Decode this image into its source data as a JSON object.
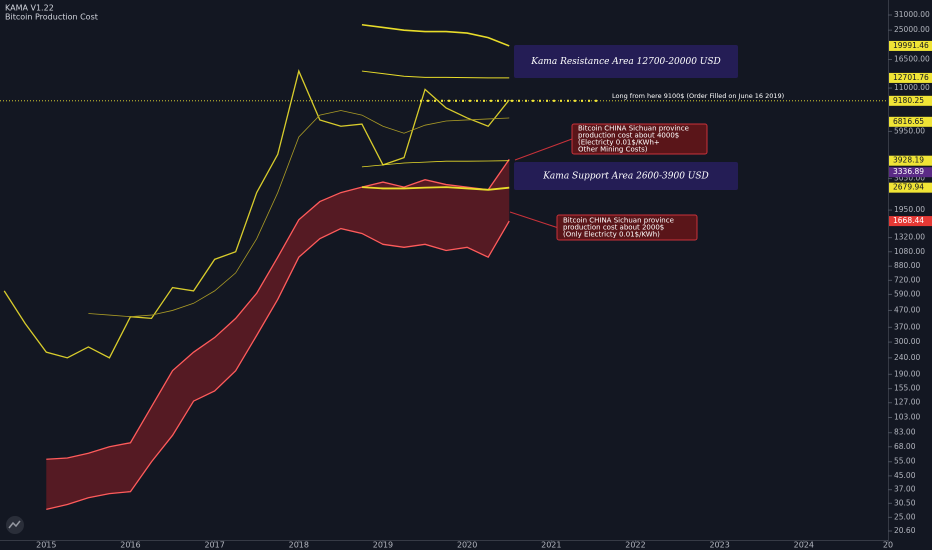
{
  "header": {
    "indicator": "KAMA V1.22",
    "subtitle": "Bitcoin Production Cost"
  },
  "chart_data": {
    "type": "line",
    "log_scale": true,
    "x": [
      2014.5,
      2014.75,
      2015,
      2015.25,
      2015.5,
      2015.75,
      2016,
      2016.25,
      2016.5,
      2016.75,
      2017,
      2017.25,
      2017.5,
      2017.75,
      2018,
      2018.25,
      2018.5,
      2018.75,
      2019,
      2019.25,
      2019.5,
      2019.75,
      2020,
      2020.25,
      2020.5
    ],
    "series": [
      {
        "color": "#d8cc2c",
        "values": [
          620,
          390,
          260,
          240,
          280,
          240,
          430,
          420,
          650,
          620,
          970,
          1080,
          2500,
          4300,
          14000,
          7000,
          6400,
          6600,
          3700,
          4100,
          10800,
          8300,
          7200,
          6400,
          9300
        ]
      },
      {
        "color": "#ff5b5b",
        "values": [
          null,
          null,
          57,
          58,
          62,
          68,
          72,
          120,
          200,
          260,
          320,
          420,
          600,
          1000,
          1700,
          2200,
          2500,
          2700,
          2900,
          2700,
          3000,
          2800,
          2700,
          2600,
          4000
        ]
      },
      {
        "color": "#ff5b5b",
        "values": [
          null,
          null,
          28,
          30,
          33,
          35,
          36,
          55,
          80,
          130,
          150,
          200,
          330,
          550,
          1000,
          1300,
          1500,
          1400,
          1200,
          1150,
          1200,
          1100,
          1150,
          1000,
          1668.44
        ]
      },
      {
        "color": "#a99a26",
        "values": [
          null,
          null,
          null,
          null,
          450,
          440,
          430,
          440,
          470,
          520,
          620,
          800,
          1300,
          2500,
          5500,
          7500,
          8000,
          7500,
          6400,
          5800,
          6500,
          6900,
          7000,
          7100,
          7200
        ]
      },
      {
        "color": "#e8dc2a",
        "values": [
          null,
          null,
          null,
          null,
          null,
          null,
          null,
          null,
          null,
          null,
          null,
          null,
          null,
          null,
          null,
          null,
          null,
          27000,
          26000,
          25000,
          24500,
          24500,
          24000,
          22500,
          19991.46
        ]
      },
      {
        "color": "#e8dc2a",
        "values": [
          null,
          null,
          null,
          null,
          null,
          null,
          null,
          null,
          null,
          null,
          null,
          null,
          null,
          null,
          null,
          null,
          null,
          14000,
          13500,
          13000,
          12800,
          12800,
          12750,
          12720,
          12701.76
        ]
      },
      {
        "color": "#e8dc2a",
        "values": [
          null,
          null,
          null,
          null,
          null,
          null,
          null,
          null,
          null,
          null,
          null,
          null,
          null,
          null,
          null,
          null,
          null,
          3600,
          3700,
          3800,
          3850,
          3900,
          3900,
          3910,
          3928.19
        ]
      },
      {
        "color": "#e8dc2a",
        "values": [
          null,
          null,
          null,
          null,
          null,
          null,
          null,
          null,
          null,
          null,
          null,
          null,
          null,
          null,
          null,
          null,
          null,
          2700,
          2650,
          2650,
          2680,
          2700,
          2650,
          2600,
          2679.94
        ]
      }
    ],
    "fill_between": [
      1,
      2
    ],
    "fill_color": "rgba(130,28,36,0.6)",
    "xlim": [
      2014.45,
      2025
    ],
    "xticks": [
      2015,
      2016,
      2017,
      2018,
      2019,
      2020,
      2021,
      2022,
      2023,
      2024,
      {
        "value": 2025,
        "label": "20"
      }
    ],
    "ylim": [
      20.6,
      31000
    ],
    "yticks": [
      {
        "value": 31000,
        "label": "31000.00"
      },
      {
        "value": 25000,
        "label": "25000.00"
      },
      {
        "value": 16500,
        "label": "16500.00"
      },
      {
        "value": 11000,
        "label": "11000.00"
      },
      {
        "value": 5950,
        "label": "5950.00"
      },
      {
        "value": 3050,
        "label": "3050.00"
      },
      {
        "value": 1950,
        "label": "1950.00"
      },
      {
        "value": 1320,
        "label": "1320.00"
      },
      {
        "value": 1080,
        "label": "1080.00"
      },
      {
        "value": 880,
        "label": "880.00"
      },
      {
        "value": 720,
        "label": "720.00"
      },
      {
        "value": 590,
        "label": "590.00"
      },
      {
        "value": 470,
        "label": "470.00"
      },
      {
        "value": 370,
        "label": "370.00"
      },
      {
        "value": 300,
        "label": "300.00"
      },
      {
        "value": 240,
        "label": "240.00"
      },
      {
        "value": 190,
        "label": "190.00"
      },
      {
        "value": 155,
        "label": "155.00"
      },
      {
        "value": 127,
        "label": "127.00"
      },
      {
        "value": 103,
        "label": "103.00"
      },
      {
        "value": 83,
        "label": "83.00"
      },
      {
        "value": 68,
        "label": "68.00"
      },
      {
        "value": 55,
        "label": "55.00"
      },
      {
        "value": 45,
        "label": "45.00"
      },
      {
        "value": 37,
        "label": "37.00"
      },
      {
        "value": 30.5,
        "label": "30.50"
      },
      {
        "value": 25,
        "label": "25.00"
      },
      {
        "value": 20.6,
        "label": "20.60"
      }
    ],
    "price_markers": [
      {
        "value": 19991.46,
        "label": "19991.46",
        "color": "#f0e436"
      },
      {
        "value": 12701.76,
        "label": "12701.76",
        "color": "#f0e436"
      },
      {
        "value": 9180.25,
        "label": "9180.25",
        "color": "#f0e436"
      },
      {
        "value": 6816.65,
        "label": "6816.65",
        "color": "#f0e436"
      },
      {
        "value": 3928.19,
        "label": "3928.19",
        "color": "#f0e436"
      },
      {
        "value": 3336.89,
        "label": "3336.89",
        "color": "#5b2a86"
      },
      {
        "value": 2679.94,
        "label": "2679.94",
        "color": "#f0e436"
      },
      {
        "value": 1668.44,
        "label": "1668.44",
        "color": "#e53935"
      }
    ],
    "level_marker": 2,
    "annotations": [
      {
        "lines": [
          "Kama Resistance Area 12700-20000 USD"
        ]
      },
      {
        "lines": [
          "Kama Support Area 2600-3900 USD"
        ]
      },
      {
        "lines": [
          "Long from here 9100$ (Order Filled on June 16 2019)"
        ]
      },
      {
        "lines": [
          "Bitcoin CHINA Sichuan province",
          "production cost about 4000$",
          "(Electricty 0.01$/KWh+",
          "Other Mining Costs)"
        ]
      },
      {
        "lines": [
          "Bitcoin CHINA Sichuan province",
          "production cost about 2000$",
          "(Only Electricty 0.01$/KWh)"
        ]
      }
    ]
  }
}
